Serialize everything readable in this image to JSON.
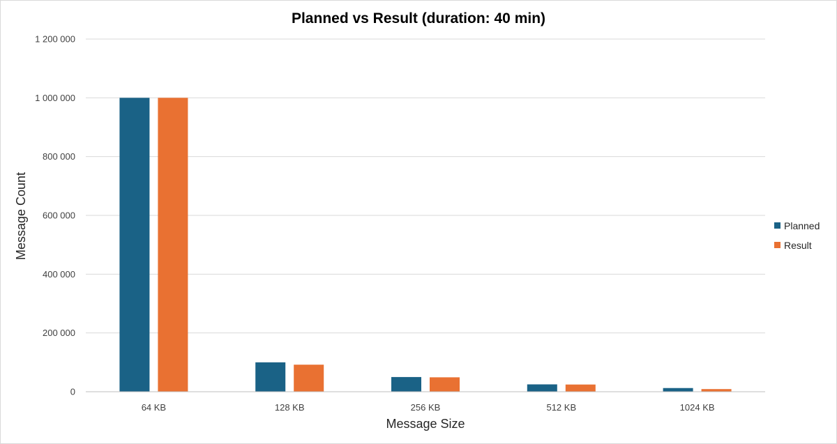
{
  "chart_data": {
    "type": "bar",
    "title": "Planned vs Result (duration: 40 min)",
    "xlabel": "Message Size",
    "ylabel": "Message Count",
    "categories": [
      "64 KB",
      "128 KB",
      "256 KB",
      "512 KB",
      "1024 KB"
    ],
    "series": [
      {
        "name": "Planned",
        "color": "#1a6286",
        "values": [
          1000000,
          100000,
          50000,
          25000,
          12500
        ]
      },
      {
        "name": "Result",
        "color": "#e97132",
        "values": [
          1000000,
          92000,
          49000,
          24500,
          9000
        ]
      }
    ],
    "ylim": [
      0,
      1200000
    ],
    "yticks": [
      0,
      200000,
      400000,
      600000,
      800000,
      1000000,
      1200000
    ],
    "ytick_labels": [
      "0",
      "200 000",
      "400 000",
      "600 000",
      "800 000",
      "1 000 000",
      "1 200 000"
    ],
    "grid": true,
    "legend_position": "right"
  }
}
